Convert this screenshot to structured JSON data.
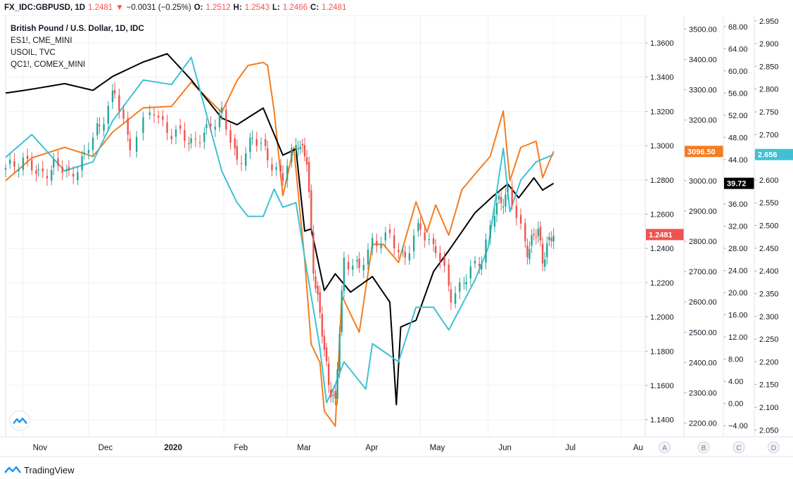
{
  "header": {
    "symbol": "FX_IDC:GBPUSD, 1D",
    "last": "1.2481",
    "change": "−0.0031 (−0.25%)",
    "o_label": "O:",
    "o_value": "1.2512",
    "h_label": "H:",
    "h_value": "1.2543",
    "l_label": "L:",
    "l_value": "1.2466",
    "c_label": "C:",
    "c_value": "1.2481"
  },
  "legend": [
    "British Pound / U.S. Dollar, 1D, IDC",
    "ES1!, CME_MINI",
    "USOIL, TVC",
    "QC1!, COMEX_MINI"
  ],
  "footer": {
    "brand": "TradingView"
  },
  "colors": {
    "up": "#26a69a",
    "down": "#ef5350",
    "es": "#f57c1f",
    "oil": "#000000",
    "qc": "#3fc1d3",
    "grid": "#eef0f3"
  },
  "chart_data": {
    "type": "line",
    "x_labels": [
      "Nov",
      "Dec",
      "2020",
      "Feb",
      "Mar",
      "Apr",
      "May",
      "Jun",
      "Jul",
      "Au"
    ],
    "x_range": [
      "2019-10-24",
      "2020-08-12"
    ],
    "axes": [
      {
        "id": "A",
        "range": [
          1.13,
          1.376
        ],
        "ticks": [
          "1.3600",
          "1.3400",
          "1.3200",
          "1.3000",
          "1.2800",
          "1.2600",
          "1.2400",
          "1.2200",
          "1.2000",
          "1.1800",
          "1.1600",
          "1.1400"
        ],
        "last_label": "1.2481",
        "last_value": 1.2481,
        "last_color": "#ef5350"
      },
      {
        "id": "B",
        "range": [
          2155,
          3545
        ],
        "ticks": [
          "3500.00",
          "3400.00",
          "3300.00",
          "3200.00",
          "3100.00",
          "3000.00",
          "2900.00",
          "2800.00",
          "2700.00",
          "2600.00",
          "2500.00",
          "2400.00",
          "2300.00",
          "2200.00"
        ],
        "last_label": "3096.50",
        "last_value": 3096.5,
        "last_color": "#f57c1f"
      },
      {
        "id": "C",
        "range": [
          -6,
          70
        ],
        "ticks": [
          "68.00",
          "64.00",
          "60.00",
          "56.00",
          "52.00",
          "48.00",
          "44.00",
          "40.00",
          "36.00",
          "32.00",
          "28.00",
          "24.00",
          "20.00",
          "16.00",
          "12.00",
          "8.00",
          "4.00",
          "0.00",
          "−4.00"
        ],
        "last_label": "39.72",
        "last_value": 39.72,
        "last_color": "#000000"
      },
      {
        "id": "D",
        "range": [
          2.035,
          2.962
        ],
        "ticks": [
          "2.950",
          "2.900",
          "2.850",
          "2.800",
          "2.750",
          "2.700",
          "2.650",
          "2.600",
          "2.550",
          "2.500",
          "2.450",
          "2.400",
          "2.350",
          "2.300",
          "2.250",
          "2.200",
          "2.150",
          "2.100",
          "2.050"
        ],
        "last_label": "2.656",
        "last_value": 2.656,
        "last_color": "#3fc1d3"
      }
    ],
    "axis_letters": [
      "A",
      "B",
      "C",
      "D"
    ],
    "series": [
      {
        "name": "ES1!, CME_MINI",
        "axis": "B",
        "color": "#f57c1f",
        "points": [
          [
            "2019-10-24",
            3000
          ],
          [
            "2019-11-05",
            3075
          ],
          [
            "2019-11-20",
            3110
          ],
          [
            "2019-12-03",
            3080
          ],
          [
            "2019-12-12",
            3160
          ],
          [
            "2019-12-26",
            3240
          ],
          [
            "2020-01-08",
            3245
          ],
          [
            "2020-01-17",
            3325
          ],
          [
            "2020-01-31",
            3225
          ],
          [
            "2020-02-07",
            3330
          ],
          [
            "2020-02-12",
            3380
          ],
          [
            "2020-02-19",
            3390
          ],
          [
            "2020-02-21",
            3380
          ],
          [
            "2020-02-24",
            3230
          ],
          [
            "2020-02-28",
            2950
          ],
          [
            "2020-03-04",
            3110
          ],
          [
            "2020-03-09",
            2740
          ],
          [
            "2020-03-12",
            2460
          ],
          [
            "2020-03-16",
            2400
          ],
          [
            "2020-03-18",
            2240
          ],
          [
            "2020-03-23",
            2190
          ],
          [
            "2020-03-26",
            2620
          ],
          [
            "2020-04-03",
            2500
          ],
          [
            "2020-04-09",
            2790
          ],
          [
            "2020-04-14",
            2790
          ],
          [
            "2020-04-21",
            2730
          ],
          [
            "2020-04-29",
            2930
          ],
          [
            "2020-05-04",
            2830
          ],
          [
            "2020-05-08",
            2920
          ],
          [
            "2020-05-14",
            2820
          ],
          [
            "2020-05-20",
            2970
          ],
          [
            "2020-05-27",
            3030
          ],
          [
            "2020-06-02",
            3080
          ],
          [
            "2020-06-08",
            3230
          ],
          [
            "2020-06-11",
            3000
          ],
          [
            "2020-06-16",
            3110
          ],
          [
            "2020-06-23",
            3130
          ],
          [
            "2020-06-26",
            3010
          ],
          [
            "2020-07-01",
            3096.5
          ]
        ]
      },
      {
        "name": "USOIL, TVC",
        "axis": "C",
        "color": "#000000",
        "points": [
          [
            "2019-10-24",
            56
          ],
          [
            "2019-11-05",
            56.7
          ],
          [
            "2019-11-20",
            57.7
          ],
          [
            "2019-12-03",
            56.5
          ],
          [
            "2019-12-12",
            59
          ],
          [
            "2019-12-26",
            61.6
          ],
          [
            "2020-01-06",
            63.1
          ],
          [
            "2020-01-17",
            58.4
          ],
          [
            "2020-01-31",
            51.5
          ],
          [
            "2020-02-07",
            50.3
          ],
          [
            "2020-02-19",
            53.3
          ],
          [
            "2020-02-28",
            44.8
          ],
          [
            "2020-03-05",
            45.9
          ],
          [
            "2020-03-09",
            31.1
          ],
          [
            "2020-03-12",
            31.5
          ],
          [
            "2020-03-18",
            20.4
          ],
          [
            "2020-03-23",
            23.4
          ],
          [
            "2020-03-30",
            20.1
          ],
          [
            "2020-04-09",
            22.9
          ],
          [
            "2020-04-17",
            18.3
          ],
          [
            "2020-04-20",
            -0.2
          ],
          [
            "2020-04-22",
            13.8
          ],
          [
            "2020-04-29",
            15
          ],
          [
            "2020-05-07",
            23.8
          ],
          [
            "2020-05-14",
            27.6
          ],
          [
            "2020-05-26",
            34.4
          ],
          [
            "2020-06-03",
            37.3
          ],
          [
            "2020-06-10",
            39.6
          ],
          [
            "2020-06-15",
            37.1
          ],
          [
            "2020-06-22",
            40.7
          ],
          [
            "2020-06-26",
            38.5
          ],
          [
            "2020-07-01",
            39.72
          ]
        ]
      },
      {
        "name": "QC1!, COMEX_MINI",
        "axis": "D",
        "color": "#3fc1d3",
        "points": [
          [
            "2019-10-24",
            2.65
          ],
          [
            "2019-11-05",
            2.7
          ],
          [
            "2019-11-20",
            2.62
          ],
          [
            "2019-12-03",
            2.64
          ],
          [
            "2019-12-12",
            2.73
          ],
          [
            "2019-12-26",
            2.82
          ],
          [
            "2020-01-08",
            2.81
          ],
          [
            "2020-01-17",
            2.87
          ],
          [
            "2020-01-31",
            2.62
          ],
          [
            "2020-02-07",
            2.55
          ],
          [
            "2020-02-12",
            2.52
          ],
          [
            "2020-02-19",
            2.52
          ],
          [
            "2020-02-24",
            2.58
          ],
          [
            "2020-02-28",
            2.54
          ],
          [
            "2020-03-05",
            2.55
          ],
          [
            "2020-03-09",
            2.43
          ],
          [
            "2020-03-16",
            2.23
          ],
          [
            "2020-03-19",
            2.11
          ],
          [
            "2020-03-23",
            2.15
          ],
          [
            "2020-03-27",
            2.2
          ],
          [
            "2020-04-06",
            2.14
          ],
          [
            "2020-04-09",
            2.24
          ],
          [
            "2020-04-21",
            2.2
          ],
          [
            "2020-04-29",
            2.32
          ],
          [
            "2020-05-07",
            2.32
          ],
          [
            "2020-05-14",
            2.27
          ],
          [
            "2020-05-26",
            2.38
          ],
          [
            "2020-06-01",
            2.45
          ],
          [
            "2020-06-08",
            2.67
          ],
          [
            "2020-06-11",
            2.53
          ],
          [
            "2020-06-16",
            2.6
          ],
          [
            "2020-06-23",
            2.64
          ],
          [
            "2020-07-01",
            2.656
          ]
        ]
      },
      {
        "name": "British Pound / U.S. Dollar, 1D, IDC",
        "axis": "A",
        "type": "candlestick",
        "points": [
          [
            "2019-10-24",
            1.285
          ],
          [
            "2019-11-01",
            1.293
          ],
          [
            "2019-11-08",
            1.282
          ],
          [
            "2019-11-15",
            1.289
          ],
          [
            "2019-11-22",
            1.283
          ],
          [
            "2019-11-29",
            1.293
          ],
          [
            "2019-12-06",
            1.313
          ],
          [
            "2019-12-13",
            1.33
          ],
          [
            "2019-12-20",
            1.302
          ],
          [
            "2019-12-31",
            1.32
          ],
          [
            "2020-01-08",
            1.307
          ],
          [
            "2020-01-17",
            1.303
          ],
          [
            "2020-01-24",
            1.307
          ],
          [
            "2020-01-31",
            1.321
          ],
          [
            "2020-02-07",
            1.289
          ],
          [
            "2020-02-14",
            1.305
          ],
          [
            "2020-02-21",
            1.294
          ],
          [
            "2020-02-28",
            1.281
          ],
          [
            "2020-03-06",
            1.304
          ],
          [
            "2020-03-10",
            1.29
          ],
          [
            "2020-03-13",
            1.23
          ],
          [
            "2020-03-18",
            1.18
          ],
          [
            "2020-03-20",
            1.163
          ],
          [
            "2020-03-23",
            1.148
          ],
          [
            "2020-03-27",
            1.235
          ],
          [
            "2020-04-03",
            1.227
          ],
          [
            "2020-04-09",
            1.245
          ],
          [
            "2020-04-17",
            1.245
          ],
          [
            "2020-04-24",
            1.236
          ],
          [
            "2020-05-01",
            1.252
          ],
          [
            "2020-05-08",
            1.24
          ],
          [
            "2020-05-15",
            1.213
          ],
          [
            "2020-05-22",
            1.222
          ],
          [
            "2020-05-29",
            1.235
          ],
          [
            "2020-06-05",
            1.265
          ],
          [
            "2020-06-10",
            1.273
          ],
          [
            "2020-06-19",
            1.24
          ],
          [
            "2020-06-24",
            1.25
          ],
          [
            "2020-06-26",
            1.235
          ],
          [
            "2020-07-01",
            1.2481
          ]
        ]
      }
    ]
  }
}
